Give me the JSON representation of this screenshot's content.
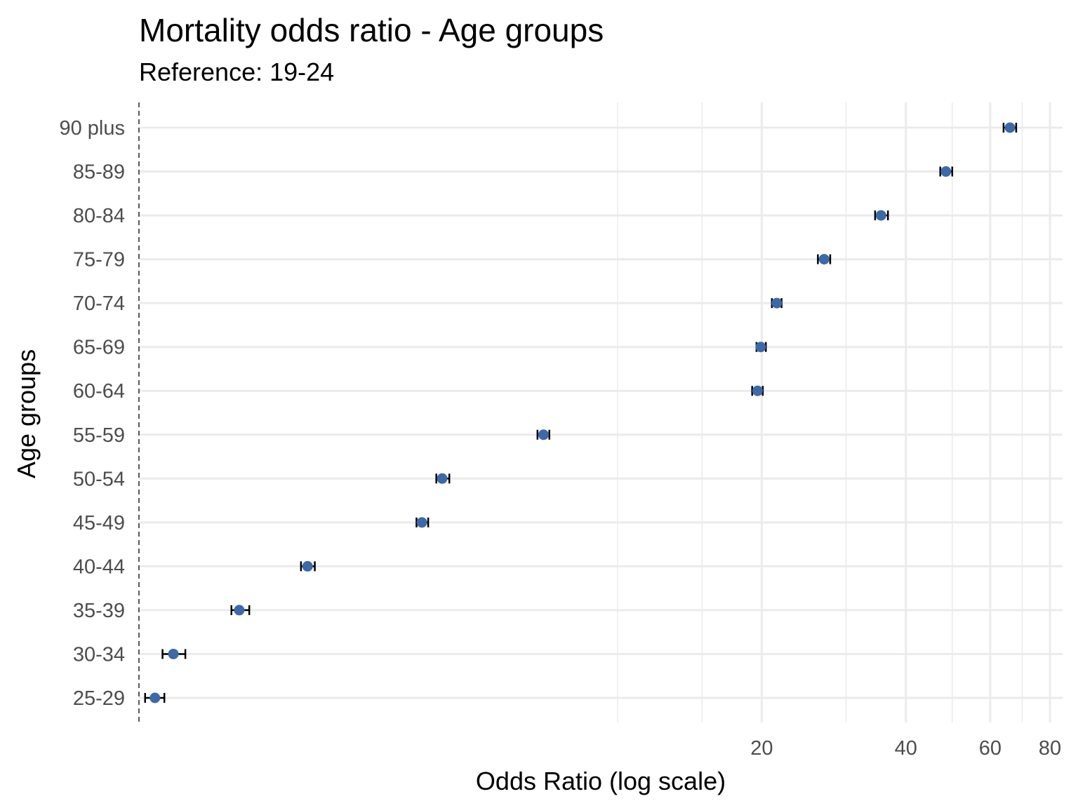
{
  "chart_data": {
    "type": "scatter",
    "title": "Mortality odds ratio - Age groups",
    "subtitle": "Reference: 19-24",
    "xlabel": "Odds Ratio (log scale)",
    "ylabel": "Age groups",
    "x_scale": "log",
    "xlim": [
      1.0,
      85
    ],
    "x_ticks": [
      20,
      40,
      60,
      80
    ],
    "x_minor_gridlines": [
      10,
      15,
      30,
      50,
      70
    ],
    "reference_line": 1,
    "categories": [
      "25-29",
      "30-34",
      "35-39",
      "40-44",
      "45-49",
      "50-54",
      "55-59",
      "60-64",
      "65-69",
      "70-74",
      "75-79",
      "80-84",
      "85-89",
      "90 plus"
    ],
    "series": [
      {
        "estimate": [
          1.08,
          1.18,
          1.62,
          2.25,
          3.9,
          4.3,
          7.0,
          19.6,
          19.9,
          21.5,
          27.0,
          35.5,
          48.5,
          66.0
        ],
        "lower": [
          1.03,
          1.12,
          1.56,
          2.18,
          3.8,
          4.18,
          6.8,
          19.1,
          19.5,
          21.0,
          26.2,
          34.5,
          47.2,
          64.0
        ],
        "upper": [
          1.13,
          1.25,
          1.7,
          2.33,
          4.02,
          4.45,
          7.2,
          20.1,
          20.4,
          22.0,
          27.8,
          36.7,
          50.0,
          68.0
        ]
      }
    ],
    "colors": {
      "point": "#3d6aa6",
      "errorbar": "#000000",
      "grid": "#ebebeb",
      "reference": "#000000"
    },
    "grid": true,
    "legend": "none"
  }
}
